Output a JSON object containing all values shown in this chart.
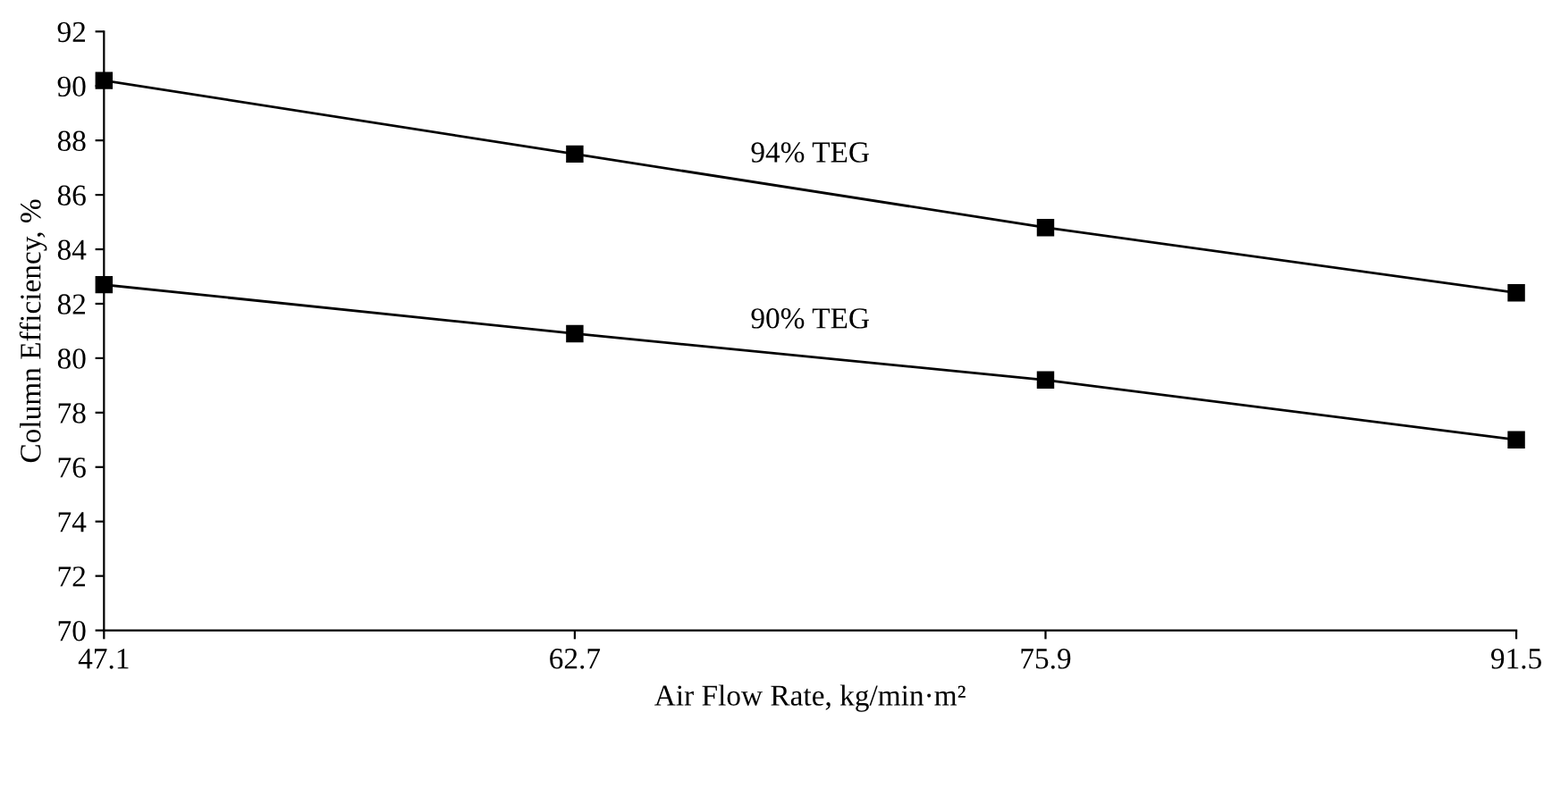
{
  "chart_data": {
    "type": "line",
    "xlabel": "Air Flow Rate, kg/min·m²",
    "ylabel": "Column Efficiency, %",
    "categories": [
      "47.1",
      "62.7",
      "75.9",
      "91.5"
    ],
    "series": [
      {
        "name": "94% TEG",
        "color": "#000000",
        "values": [
          90.2,
          87.5,
          84.8,
          82.4
        ]
      },
      {
        "name": "90% TEG",
        "color": "#000000",
        "values": [
          82.7,
          80.9,
          79.2,
          77.0
        ]
      }
    ],
    "ylim": [
      70,
      92
    ],
    "yticks": [
      70,
      72,
      74,
      76,
      78,
      80,
      82,
      84,
      86,
      88,
      90,
      92
    ],
    "marker": "square",
    "line_style": "solid",
    "grid": false,
    "legend": false
  }
}
